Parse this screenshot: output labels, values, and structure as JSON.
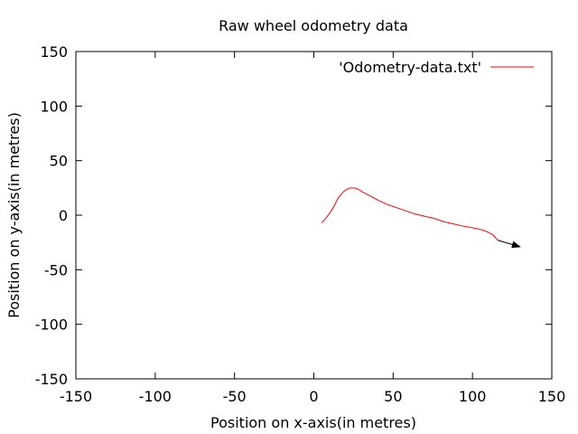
{
  "chart_data": {
    "type": "line",
    "title": "Raw wheel odometry data",
    "xlabel": "Position on x-axis(in metres)",
    "ylabel": "Position on y-axis(in metres)",
    "xlim": [
      -150,
      150
    ],
    "ylim": [
      -150,
      150
    ],
    "xticks": [
      -150,
      -100,
      -50,
      0,
      50,
      100,
      150
    ],
    "yticks": [
      -150,
      -100,
      -50,
      0,
      50,
      100,
      150
    ],
    "grid": false,
    "legend_position": "top-right",
    "series": [
      {
        "name": "'Odometry-data.txt'",
        "color": "#ff0000",
        "x": [
          5,
          8,
          11,
          13,
          15,
          17,
          19,
          21,
          23,
          25,
          27,
          29,
          31,
          35,
          40,
          46,
          52,
          58,
          64,
          70,
          76,
          82,
          88,
          94,
          100,
          105,
          109,
          111,
          113,
          114,
          115,
          116
        ],
        "y": [
          -7,
          -2,
          4,
          9,
          15,
          19,
          22,
          24,
          25,
          25,
          24.5,
          23,
          21,
          18,
          14,
          10,
          7,
          4,
          1,
          -1,
          -3,
          -6,
          -8,
          -10,
          -11.5,
          -13,
          -15,
          -16.5,
          -18,
          -20,
          -21.5,
          -23
        ]
      }
    ],
    "annotations": [
      {
        "type": "arrow",
        "from": [
          116,
          -23
        ],
        "to": [
          130,
          -29
        ],
        "color": "#000000"
      }
    ]
  }
}
